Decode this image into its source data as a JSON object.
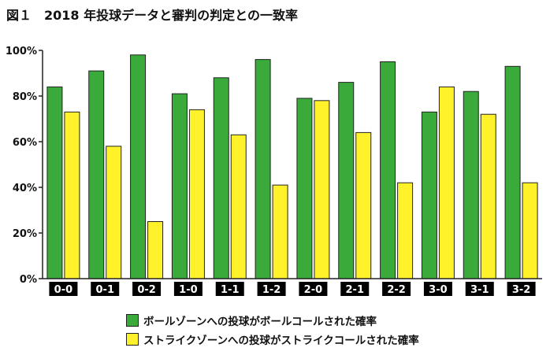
{
  "colors": {
    "ball": "#3aaa3a",
    "strike": "#fff22a",
    "axis": "#222222",
    "label_bg": "#000000",
    "label_fg": "#ffffff"
  },
  "chart_data": {
    "type": "bar",
    "title": "図１　2018 年投球データと審判の判定との一致率",
    "categories": [
      "0-0",
      "0-1",
      "0-2",
      "1-0",
      "1-1",
      "1-2",
      "2-0",
      "2-1",
      "2-2",
      "3-0",
      "3-1",
      "3-2"
    ],
    "series": [
      {
        "name": "ボールゾーンへの投球がボールコールされた確率",
        "color": "#3aaa3a",
        "values": [
          84,
          91,
          98,
          81,
          88,
          96,
          79,
          86,
          95,
          73,
          82,
          93
        ]
      },
      {
        "name": "ストライクゾーンへの投球がストライクコールされた確率",
        "color": "#fff22a",
        "values": [
          73,
          58,
          25,
          74,
          63,
          41,
          78,
          64,
          42,
          84,
          72,
          42
        ]
      }
    ],
    "ylim": [
      0,
      100
    ],
    "yticks": [
      "0%",
      "20%",
      "40%",
      "60%",
      "80%",
      "100%"
    ],
    "grid": false,
    "legend_position": "bottom"
  }
}
